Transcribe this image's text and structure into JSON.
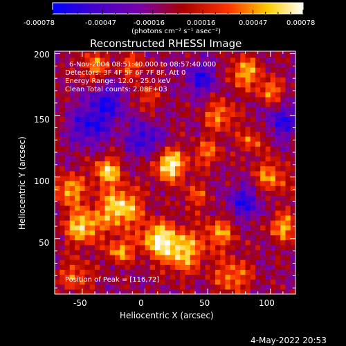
{
  "colorbar": {
    "ticks": [
      "-0.00078",
      "-0.00047",
      "-0.00016",
      "0.00016",
      "0.00047",
      "0.00078"
    ],
    "unit_label": "(photons cm⁻² s⁻¹ asec⁻²)",
    "range": [
      -0.00078,
      0.00078
    ],
    "stops": [
      "#0000ff",
      "#4400cc",
      "#7a00a8",
      "#a80000",
      "#ff3300",
      "#ffcc00",
      "#ffffff"
    ]
  },
  "annotations": {
    "time": "6-Nov-2004 08:51:40.000 to 08:57:40.000",
    "detectors": "Detectors: 3F 4F 5F 6F 7F 8F, Att 0",
    "energy": "Energy Range: 12.0 - 25.0 keV",
    "clean": "Clean     Total counts: 2.08E+03",
    "peak": "Position of Peak = [116,72]"
  },
  "footer": {
    "date": "4-May-2022 20:53"
  },
  "chart_data": {
    "type": "heatmap",
    "title": "Reconstructed RHESSI Image",
    "xlabel": "Heliocentric X (arcsec)",
    "ylabel": "Heliocentric Y (arcsec)",
    "xlim": [
      -72,
      120
    ],
    "ylim": [
      5,
      202
    ],
    "xticks": [
      "-50",
      "0",
      "50",
      "100"
    ],
    "yticks": [
      "50",
      "100",
      "150",
      "200"
    ],
    "grid": false,
    "value_range": [
      -0.00078,
      0.00078
    ],
    "peak_position": [
      116,
      72
    ],
    "pixel_size_arcsec": 4
  }
}
